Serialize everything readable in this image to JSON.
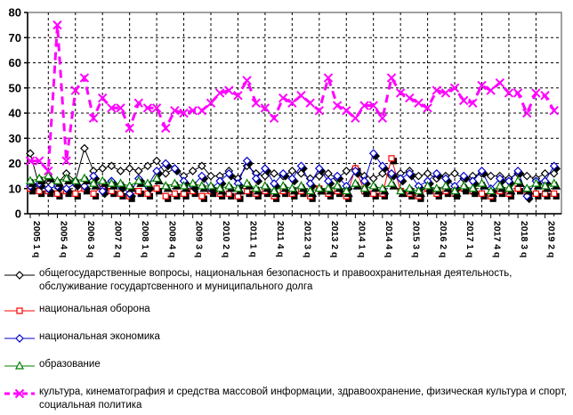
{
  "chart_data": {
    "type": "line",
    "title": "",
    "xlabel": "",
    "ylabel": "",
    "ylim": [
      0,
      80
    ],
    "yticks": [
      0,
      10,
      20,
      30,
      40,
      50,
      60,
      70,
      80
    ],
    "grid": "dashed",
    "legend_position": "bottom",
    "n_points": 59,
    "x_start": "2005 Q1",
    "label_every": 3,
    "x_labels": [
      "2005 1 q",
      "2005 4 q",
      "2006 3 q",
      "2007 2 q",
      "2008 1 q",
      "2008 4 q",
      "2009 3 q",
      "2010 2 q",
      "2011 1 q",
      "2011 4 q",
      "2012 3 q",
      "2013 2 q",
      "2014 1 q",
      "2014 4 q",
      "2015 3 q",
      "2016 2 q",
      "2017 1 q",
      "2017 4 q",
      "2018 3 q",
      "2019 2 q"
    ],
    "axis_color": "#000000",
    "frame_color": "#808080",
    "series": [
      {
        "name": "общегосударственные вопросы, национальная безопасность и правоохранительная деятельность, обслуживание государтсвенного и муниципального долга",
        "color": "#000000",
        "marker": "open-diamond",
        "line_width": 1,
        "dash": "solid",
        "shadow": false,
        "values": [
          24,
          11,
          13,
          12,
          16,
          13,
          26,
          17,
          18,
          19,
          17,
          18,
          17,
          19,
          21,
          16,
          18,
          15,
          17,
          19,
          15,
          15,
          17,
          14,
          19,
          16,
          15,
          16,
          15,
          17,
          16,
          14,
          15,
          16,
          14,
          17,
          18,
          15,
          14,
          16,
          15,
          16,
          17,
          15,
          16,
          14,
          15,
          16,
          14,
          15,
          16,
          15,
          15,
          14,
          16,
          15,
          14,
          16,
          16
        ]
      },
      {
        "name": "национальная оборона",
        "color": "#FF0000",
        "marker": "open-square",
        "line_width": 1,
        "dash": "solid",
        "shadow": true,
        "values": [
          10,
          9,
          9,
          8,
          9,
          8,
          10,
          8,
          11,
          9,
          8,
          7,
          9,
          8,
          10,
          7,
          8,
          8,
          9,
          7,
          9,
          8,
          8,
          7,
          9,
          8,
          9,
          7,
          9,
          8,
          9,
          7,
          10,
          8,
          9,
          7,
          18,
          9,
          8,
          8,
          22,
          9,
          8,
          7,
          10,
          8,
          9,
          8,
          10,
          9,
          8,
          7,
          9,
          8,
          10,
          8,
          8,
          8,
          8
        ]
      },
      {
        "name": "национальная экономика",
        "color": "#0000CC",
        "marker": "open-diamond",
        "line_width": 1,
        "dash": "solid",
        "shadow": true,
        "values": [
          11,
          12,
          10,
          11,
          10,
          12,
          11,
          15,
          9,
          13,
          11,
          8,
          14,
          11,
          17,
          20,
          18,
          13,
          11,
          15,
          10,
          13,
          16,
          12,
          21,
          14,
          18,
          12,
          16,
          14,
          19,
          12,
          18,
          13,
          15,
          11,
          17,
          13,
          24,
          19,
          16,
          14,
          16,
          11,
          13,
          16,
          14,
          11,
          15,
          13,
          17,
          10,
          14,
          13,
          17,
          7,
          13,
          13,
          19
        ]
      },
      {
        "name": "образование",
        "color": "#008000",
        "marker": "open-triangle",
        "line_width": 1,
        "dash": "solid",
        "shadow": true,
        "values": [
          13,
          14,
          15,
          13,
          14,
          13,
          14,
          12,
          13,
          12,
          12,
          11,
          13,
          12,
          14,
          11,
          12,
          11,
          12,
          11,
          11,
          10,
          11,
          10,
          12,
          10,
          11,
          9,
          11,
          10,
          11,
          9,
          10,
          10,
          11,
          9,
          12,
          10,
          11,
          10,
          12,
          9,
          10,
          9,
          11,
          10,
          11,
          9,
          11,
          10,
          12,
          9,
          11,
          10,
          13,
          10,
          12,
          11,
          12
        ]
      },
      {
        "name": "культура, кинематография и средства массовой информации, здравоохранение, физическая культура и спорт, социальная политика",
        "color": "#FF00FF",
        "marker": "x",
        "line_width": 3,
        "dash": "dashed",
        "shadow": false,
        "values": [
          21,
          21,
          17,
          75,
          21,
          49,
          54,
          38,
          46,
          42,
          42,
          34,
          44,
          42,
          42,
          34,
          41,
          40,
          41,
          41,
          44,
          48,
          49,
          47,
          53,
          44,
          42,
          38,
          46,
          44,
          47,
          44,
          41,
          54,
          43,
          41,
          38,
          43,
          43,
          38,
          54,
          48,
          46,
          44,
          42,
          49,
          48,
          50,
          45,
          44,
          51,
          49,
          52,
          48,
          48,
          40,
          48,
          47,
          41
        ]
      }
    ]
  }
}
